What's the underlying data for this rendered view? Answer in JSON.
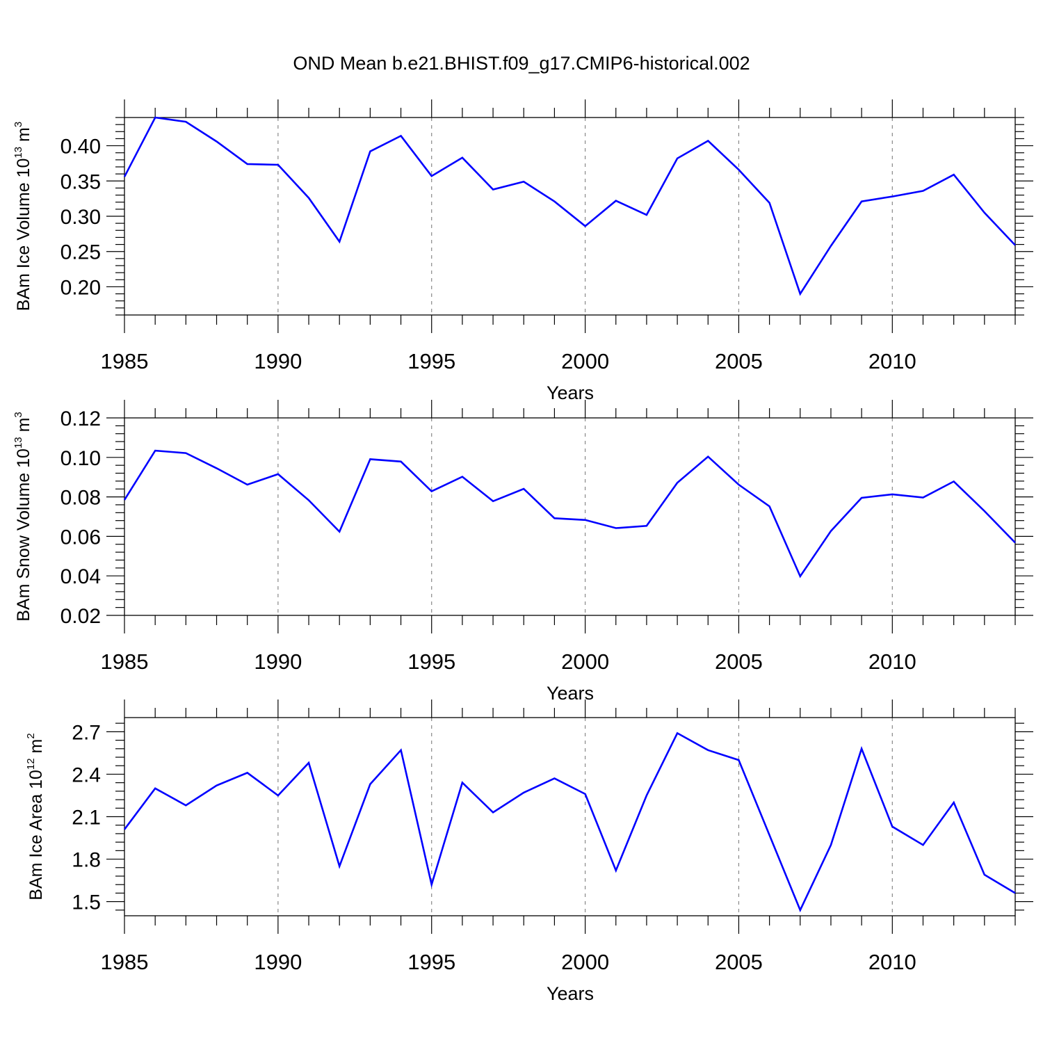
{
  "title": "OND Mean b.e21.BHIST.f09_g17.CMIP6-historical.002",
  "chart_data": [
    {
      "type": "line",
      "ylabel": {
        "text": "BAm Ice Volume 10",
        "sup": "13",
        "unit": " m",
        "unit_sup": "3"
      },
      "xlabel": "Years",
      "xlim": [
        1985,
        2014
      ],
      "ylim": [
        0.16,
        0.44
      ],
      "xticks": [
        1985,
        1990,
        1995,
        2000,
        2005,
        2010
      ],
      "xtick_labels": [
        "1985",
        "1990",
        "1995",
        "2000",
        "2005",
        "2010"
      ],
      "yticks": [
        0.2,
        0.25,
        0.3,
        0.35,
        0.4
      ],
      "ytick_labels": [
        "0.20",
        "0.25",
        "0.30",
        "0.35",
        "0.40"
      ],
      "vgrid": [
        1990,
        1995,
        2000,
        2005,
        2010
      ],
      "line_color": "#0000ff",
      "x": [
        1985,
        1986,
        1987,
        1988,
        1989,
        1990,
        1991,
        1992,
        1993,
        1994,
        1995,
        1996,
        1997,
        1998,
        1999,
        2000,
        2001,
        2002,
        2003,
        2004,
        2005,
        2006,
        2007,
        2008,
        2009,
        2010,
        2011,
        2012,
        2013,
        2014
      ],
      "values": [
        0.356,
        0.44,
        0.434,
        0.406,
        0.374,
        0.373,
        0.326,
        0.264,
        0.392,
        0.414,
        0.357,
        0.383,
        0.338,
        0.349,
        0.321,
        0.286,
        0.322,
        0.302,
        0.382,
        0.407,
        0.366,
        0.319,
        0.19,
        0.258,
        0.321,
        0.328,
        0.336,
        0.359,
        0.305,
        0.259
      ]
    },
    {
      "type": "line",
      "ylabel": {
        "text": "BAm Snow Volume 10",
        "sup": "13",
        "unit": " m",
        "unit_sup": "3"
      },
      "xlabel": "Years",
      "xlim": [
        1985,
        2014
      ],
      "ylim": [
        0.02,
        0.12
      ],
      "xticks": [
        1985,
        1990,
        1995,
        2000,
        2005,
        2010
      ],
      "xtick_labels": [
        "1985",
        "1990",
        "1995",
        "2000",
        "2005",
        "2010"
      ],
      "yticks": [
        0.02,
        0.04,
        0.06,
        0.08,
        0.1,
        0.12
      ],
      "ytick_labels": [
        "0.02",
        "0.04",
        "0.06",
        "0.08",
        "0.10",
        "0.12"
      ],
      "vgrid": [
        1990,
        1995,
        2000,
        2005,
        2010
      ],
      "line_color": "#0000ff",
      "x": [
        1985,
        1986,
        1987,
        1988,
        1989,
        1990,
        1991,
        1992,
        1993,
        1994,
        1995,
        1996,
        1997,
        1998,
        1999,
        2000,
        2001,
        2002,
        2003,
        2004,
        2005,
        2006,
        2007,
        2008,
        2009,
        2010,
        2011,
        2012,
        2013,
        2014
      ],
      "values": [
        0.0785,
        0.1034,
        0.1022,
        0.0945,
        0.0862,
        0.0915,
        0.0783,
        0.0624,
        0.0991,
        0.0979,
        0.0828,
        0.0902,
        0.0778,
        0.0841,
        0.0692,
        0.0683,
        0.0642,
        0.0653,
        0.0872,
        0.1004,
        0.0862,
        0.0752,
        0.0398,
        0.0627,
        0.0795,
        0.0813,
        0.0797,
        0.0878,
        0.0728,
        0.0568
      ]
    },
    {
      "type": "line",
      "ylabel": {
        "text": "BAm Ice Area 10",
        "sup": "12",
        "unit": " m",
        "unit_sup": "2"
      },
      "xlabel": "Years",
      "xlim": [
        1985,
        2014
      ],
      "ylim": [
        1.4,
        2.8
      ],
      "xticks": [
        1985,
        1990,
        1995,
        2000,
        2005,
        2010
      ],
      "xtick_labels": [
        "1985",
        "1990",
        "1995",
        "2000",
        "2005",
        "2010"
      ],
      "yticks": [
        1.5,
        1.8,
        2.1,
        2.4,
        2.7
      ],
      "ytick_labels": [
        "1.5",
        "1.8",
        "2.1",
        "2.4",
        "2.7"
      ],
      "vgrid": [
        1990,
        1995,
        2000,
        2005,
        2010
      ],
      "line_color": "#0000ff",
      "x": [
        1985,
        1986,
        1987,
        1988,
        1989,
        1990,
        1991,
        1992,
        1993,
        1994,
        1995,
        1996,
        1997,
        1998,
        1999,
        2000,
        2001,
        2002,
        2003,
        2004,
        2005,
        2006,
        2007,
        2008,
        2009,
        2010,
        2011,
        2012,
        2013,
        2014
      ],
      "values": [
        2.01,
        2.3,
        2.18,
        2.32,
        2.41,
        2.25,
        2.48,
        1.75,
        2.33,
        2.57,
        1.62,
        2.34,
        2.13,
        2.27,
        2.37,
        2.26,
        1.72,
        2.25,
        2.69,
        2.57,
        2.5,
        1.97,
        1.44,
        1.9,
        2.58,
        2.03,
        1.9,
        2.2,
        1.69,
        1.56
      ]
    }
  ]
}
